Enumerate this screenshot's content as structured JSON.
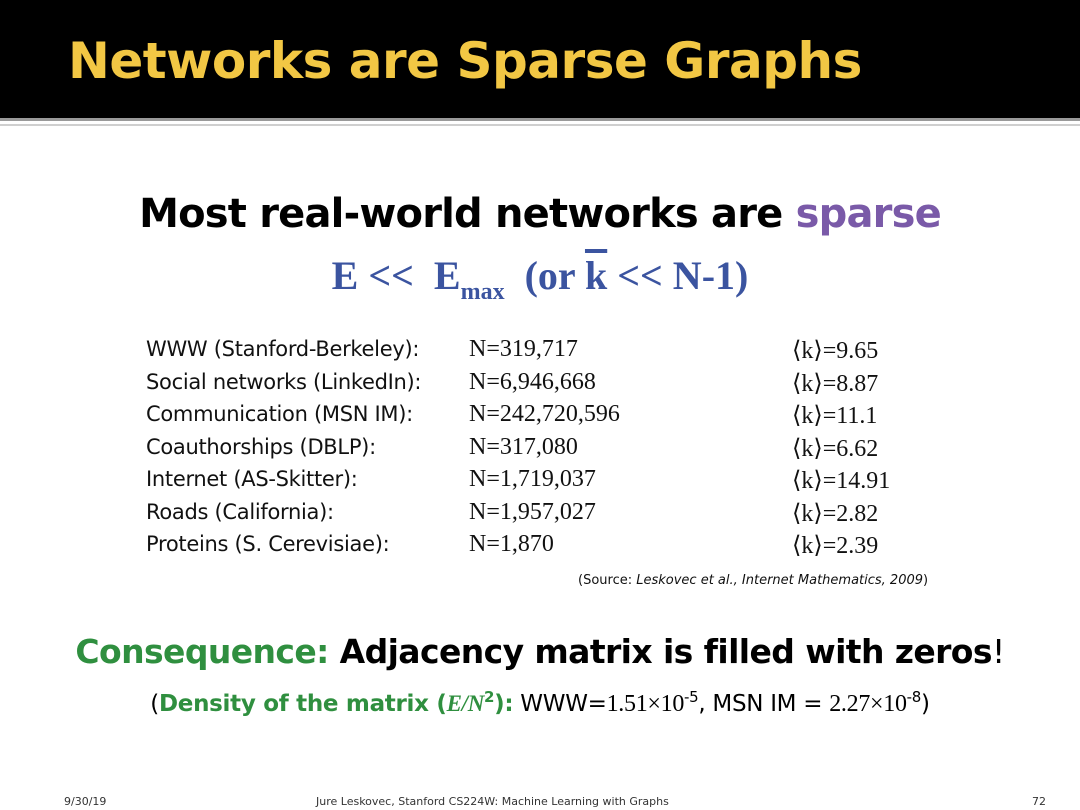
{
  "slide": {
    "title": "Networks are Sparse Graphs",
    "headline_main": "Most real-world networks are ",
    "headline_accent": "sparse",
    "formula": {
      "part1": "E <<  E",
      "sub": "max",
      "part2": "  (or ",
      "kbar": "k",
      "part3": " << N-1)"
    },
    "table": [
      {
        "name": "WWW (Stanford-Berkeley):",
        "n": "N=319,717",
        "k": "⟨k⟩=9.65"
      },
      {
        "name": "Social networks (LinkedIn):",
        "n": "N=6,946,668",
        "k": "⟨k⟩=8.87"
      },
      {
        "name": "Communication (MSN IM):",
        "n": "N=242,720,596",
        "k": "⟨k⟩=11.1"
      },
      {
        "name": "Coauthorships (DBLP):",
        "n": "N=317,080",
        "k": "⟨k⟩=6.62"
      },
      {
        "name": "Internet (AS-Skitter):",
        "n": "N=1,719,037",
        "k": "⟨k⟩=14.91"
      },
      {
        "name": "Roads (California):",
        "n": "N=1,957,027",
        "k": "⟨k⟩=2.82"
      },
      {
        "name": "Proteins (S. Cerevisiae):",
        "n": "N=1,870",
        "k": "⟨k⟩=2.39"
      }
    ],
    "source": {
      "prefix": "(Source: ",
      "citation": "Leskovec et al., Internet Mathematics, 2009",
      "suffix": ")"
    },
    "consequence": {
      "label": "Consequence:",
      "text": " Adjacency matrix is filled with zeros",
      "excl": "!"
    },
    "density": {
      "open": "(",
      "label": "Density of the matrix (",
      "en": "E/N",
      "en_sup": "2",
      "label_close": "):",
      "www_label": " WWW=",
      "www_value": "1.51×10",
      "www_exp": "-5",
      "msn_label": ", MSN IM = ",
      "msn_value": "2.27×10",
      "msn_exp": "-8",
      "close": ")"
    },
    "footer": {
      "date": "9/30/19",
      "center": "Jure Leskovec, Stanford CS224W: Machine Learning with Graphs",
      "page": "72"
    },
    "colors": {
      "header_bg": "#000000",
      "title": "#f2c744",
      "accent_purple": "#7a5aa8",
      "formula_blue": "#3b54a0",
      "green": "#2f8f3f"
    }
  }
}
